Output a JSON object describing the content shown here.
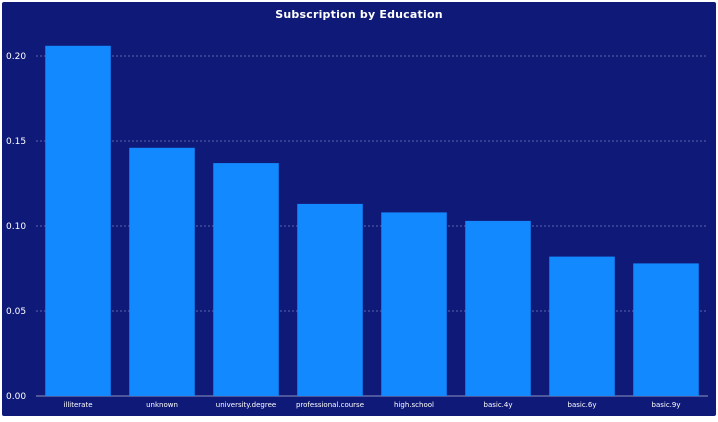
{
  "chart_data": {
    "type": "bar",
    "title": "Subscription by Education",
    "xlabel": "",
    "ylabel": "",
    "categories": [
      "illiterate",
      "unknown",
      "university.degree",
      "professional.course",
      "high.school",
      "basic.4y",
      "basic.6y",
      "basic.9y"
    ],
    "values": [
      0.206,
      0.146,
      0.137,
      0.113,
      0.108,
      0.103,
      0.082,
      0.078
    ],
    "ylim": [
      0,
      0.22
    ],
    "yticks": [
      0.0,
      0.05,
      0.1,
      0.15,
      0.2
    ],
    "ytick_labels": [
      "0.00",
      "0.05",
      "0.10",
      "0.15",
      "0.20"
    ],
    "grid": true,
    "colors": {
      "background": "#0f1a78",
      "bar": "#1289ff",
      "text": "#ffffff",
      "grid": "#8f98d8"
    }
  }
}
